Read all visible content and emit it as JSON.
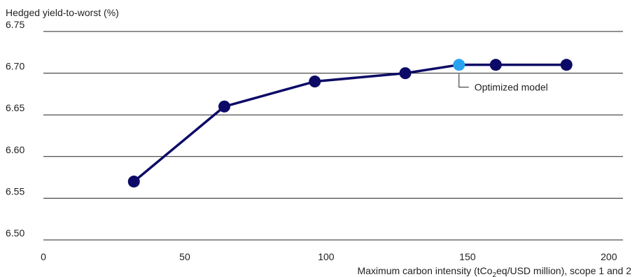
{
  "chart_data": {
    "type": "line",
    "ylabel": "Hedged yield-to-worst (%)",
    "xlabel_parts": [
      "Maximum carbon intensity (tCo",
      "2",
      "eq/USD million), scope 1 and 2"
    ],
    "xlim": [
      0,
      205
    ],
    "ylim": [
      6.5,
      6.75
    ],
    "xticks": [
      0,
      50,
      100,
      150,
      200
    ],
    "xtick_labels": [
      "0",
      "50",
      "100",
      "150",
      "200"
    ],
    "yticks": [
      6.5,
      6.55,
      6.6,
      6.65,
      6.7,
      6.75
    ],
    "ytick_labels": [
      "6.50",
      "6.55",
      "6.60",
      "6.65",
      "6.70",
      "6.75"
    ],
    "grid": "horizontal",
    "series": [
      {
        "x": [
          32,
          64,
          96,
          128,
          147,
          160,
          185
        ],
        "y": [
          6.57,
          6.66,
          6.69,
          6.7,
          6.71,
          6.71,
          6.71
        ],
        "color": "#0c0a66"
      }
    ],
    "highlight": {
      "index": 4,
      "color": "#29a3f0"
    },
    "annotations": [
      {
        "text": "Optimized model",
        "x": 147,
        "y": 6.71
      }
    ]
  }
}
